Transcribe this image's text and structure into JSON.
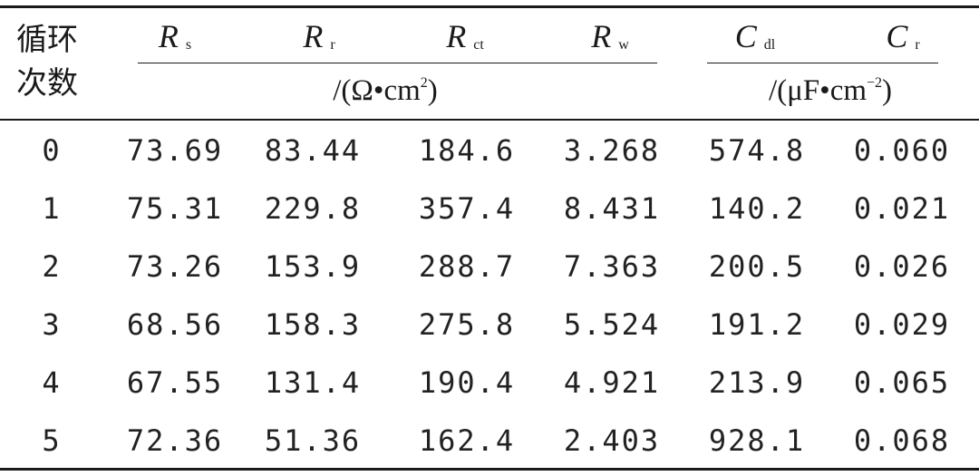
{
  "table": {
    "header": {
      "cycle_line1": "循环",
      "cycle_line2": "次数",
      "rs_sym": "R",
      "rs_sub": "s",
      "rr_sym": "R",
      "rr_sub": "r",
      "rct_sym": "R",
      "rct_sub": "ct",
      "rw_sym": "R",
      "rw_sub": "w",
      "cdl_sym": "C",
      "cdl_sub": "dl",
      "cr_sym": "C",
      "cr_sub": "r",
      "res_unit_main": "/(Ω•cm",
      "res_unit_exp": "2",
      "res_unit_close": ")",
      "cap_unit_main": "/(μF•cm",
      "cap_unit_exp": "−2",
      "cap_unit_close": ")"
    },
    "rows": [
      [
        "0",
        "73.69",
        "83.44",
        "184.6",
        "3.268",
        "574.8",
        "0.060"
      ],
      [
        "1",
        "75.31",
        "229.8",
        "357.4",
        "8.431",
        "140.2",
        "0.021"
      ],
      [
        "2",
        "73.26",
        "153.9",
        "288.7",
        "7.363",
        "200.5",
        "0.026"
      ],
      [
        "3",
        "68.56",
        "158.3",
        "275.8",
        "5.524",
        "191.2",
        "0.029"
      ],
      [
        "4",
        "67.55",
        "131.4",
        "190.4",
        "4.921",
        "213.9",
        "0.065"
      ],
      [
        "5",
        "72.36",
        "51.36",
        "162.4",
        "2.403",
        "928.1",
        "0.068"
      ]
    ]
  }
}
